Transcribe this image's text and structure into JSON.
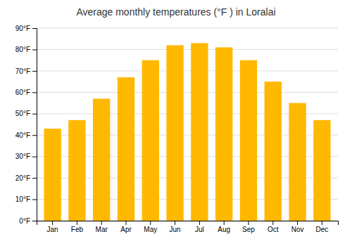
{
  "chart_data": {
    "type": "bar",
    "title": "Average monthly temperatures (°F ) in Loralai",
    "categories": [
      "Jan",
      "Feb",
      "Mar",
      "Apr",
      "May",
      "Jun",
      "Jul",
      "Aug",
      "Sep",
      "Oct",
      "Nov",
      "Dec"
    ],
    "values": [
      43,
      47,
      57,
      67,
      75,
      82,
      83,
      81,
      75,
      65,
      55,
      47
    ],
    "color": "#FFB800",
    "ylim": [
      0,
      90
    ],
    "yticks": [
      {
        "value": 0,
        "label": "0°F"
      },
      {
        "value": 10,
        "label": "10°F"
      },
      {
        "value": 20,
        "label": "20°F"
      },
      {
        "value": 30,
        "label": "30°F"
      },
      {
        "value": 40,
        "label": "40°F"
      },
      {
        "value": 50,
        "label": "50°F"
      },
      {
        "value": 60,
        "label": "60°F"
      },
      {
        "value": 70,
        "label": "70°F"
      },
      {
        "value": 80,
        "label": "80°F"
      },
      {
        "value": 90,
        "label": "90°F"
      }
    ],
    "grid": true
  }
}
